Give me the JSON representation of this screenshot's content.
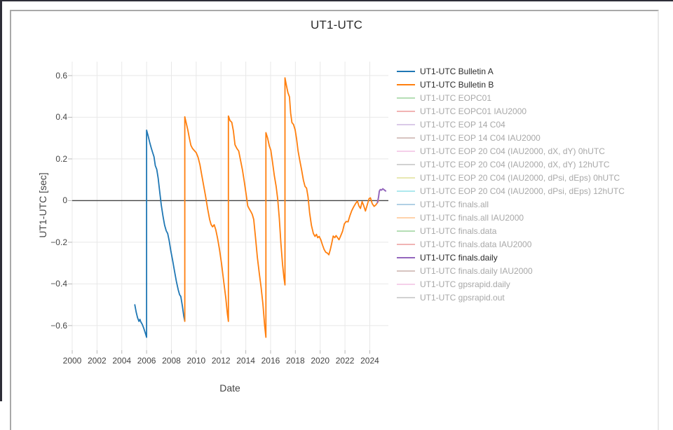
{
  "frame": {
    "card_border_color": "#a9a9a9",
    "window_edge_color": "#2e2e38",
    "background": "#ffffff"
  },
  "colors": {
    "grid": "#e8e8e8",
    "zeroline": "#444444",
    "tick_mark": "#b9b9b9",
    "tick_text": "#444444",
    "title_text": "#2b2b2b",
    "legend_active_text": "#2a2a2a",
    "legend_muted_text": "#a8a8a8"
  },
  "chart_data": {
    "type": "line",
    "title": "UT1-UTC",
    "xlabel": "Date",
    "ylabel": "UT1-UTC [sec]",
    "xlim": [
      2000,
      2025.5
    ],
    "ylim": [
      -0.718,
      0.667
    ],
    "grid": true,
    "zeroline": true,
    "legend_position": "right",
    "x_ticks": [
      {
        "v": 2000,
        "label": "2000"
      },
      {
        "v": 2002,
        "label": "2002"
      },
      {
        "v": 2004,
        "label": "2004"
      },
      {
        "v": 2006,
        "label": "2006"
      },
      {
        "v": 2008,
        "label": "2008"
      },
      {
        "v": 2010,
        "label": "2010"
      },
      {
        "v": 2012,
        "label": "2012"
      },
      {
        "v": 2014,
        "label": "2014"
      },
      {
        "v": 2016,
        "label": "2016"
      },
      {
        "v": 2018,
        "label": "2018"
      },
      {
        "v": 2020,
        "label": "2020"
      },
      {
        "v": 2022,
        "label": "2022"
      },
      {
        "v": 2024,
        "label": "2024"
      }
    ],
    "y_ticks": [
      {
        "v": 0.6,
        "label": "0.6"
      },
      {
        "v": 0.4,
        "label": "0.4"
      },
      {
        "v": 0.2,
        "label": "0.2"
      },
      {
        "v": 0,
        "label": "0"
      },
      {
        "v": -0.2,
        "label": "−0.2"
      },
      {
        "v": -0.4,
        "label": "−0.4"
      },
      {
        "v": -0.6,
        "label": "−0.6"
      }
    ],
    "series": [
      {
        "name": "UT1-UTC Bulletin A",
        "color": "#1f77b4",
        "width": 1.8,
        "points": [
          [
            2005.05,
            -0.5
          ],
          [
            2005.16,
            -0.536
          ],
          [
            2005.27,
            -0.562
          ],
          [
            2005.38,
            -0.58
          ],
          [
            2005.46,
            -0.57
          ],
          [
            2005.53,
            -0.582
          ],
          [
            2005.65,
            -0.594
          ],
          [
            2005.78,
            -0.614
          ],
          [
            2005.9,
            -0.636
          ],
          [
            2006.0,
            -0.656
          ],
          [
            2006.0,
            0.338
          ],
          [
            2006.12,
            0.312
          ],
          [
            2006.25,
            0.28
          ],
          [
            2006.38,
            0.252
          ],
          [
            2006.5,
            0.228
          ],
          [
            2006.6,
            0.21
          ],
          [
            2006.7,
            0.168
          ],
          [
            2006.82,
            0.15
          ],
          [
            2006.93,
            0.108
          ],
          [
            2007.06,
            0.04
          ],
          [
            2007.18,
            -0.02
          ],
          [
            2007.32,
            -0.075
          ],
          [
            2007.45,
            -0.118
          ],
          [
            2007.58,
            -0.145
          ],
          [
            2007.7,
            -0.158
          ],
          [
            2007.82,
            -0.192
          ],
          [
            2007.95,
            -0.24
          ],
          [
            2008.1,
            -0.288
          ],
          [
            2008.25,
            -0.338
          ],
          [
            2008.4,
            -0.388
          ],
          [
            2008.55,
            -0.428
          ],
          [
            2008.66,
            -0.452
          ],
          [
            2008.76,
            -0.46
          ],
          [
            2008.88,
            -0.505
          ],
          [
            2009.0,
            -0.556
          ],
          [
            2009.08,
            -0.578
          ]
        ]
      },
      {
        "name": "UT1-UTC Bulletin B",
        "color": "#ff7f0e",
        "width": 1.8,
        "points": [
          [
            2009.08,
            -0.58
          ],
          [
            2009.08,
            0.402
          ],
          [
            2009.2,
            0.372
          ],
          [
            2009.33,
            0.338
          ],
          [
            2009.45,
            0.3
          ],
          [
            2009.57,
            0.265
          ],
          [
            2009.7,
            0.25
          ],
          [
            2009.85,
            0.24
          ],
          [
            2010.0,
            0.23
          ],
          [
            2010.15,
            0.208
          ],
          [
            2010.3,
            0.172
          ],
          [
            2010.45,
            0.122
          ],
          [
            2010.6,
            0.072
          ],
          [
            2010.76,
            0.02
          ],
          [
            2010.92,
            -0.038
          ],
          [
            2011.08,
            -0.09
          ],
          [
            2011.2,
            -0.115
          ],
          [
            2011.32,
            -0.126
          ],
          [
            2011.45,
            -0.116
          ],
          [
            2011.58,
            -0.14
          ],
          [
            2011.72,
            -0.18
          ],
          [
            2011.88,
            -0.235
          ],
          [
            2012.05,
            -0.305
          ],
          [
            2012.22,
            -0.388
          ],
          [
            2012.38,
            -0.465
          ],
          [
            2012.52,
            -0.545
          ],
          [
            2012.6,
            -0.58
          ],
          [
            2012.6,
            0.406
          ],
          [
            2012.73,
            0.384
          ],
          [
            2012.87,
            0.376
          ],
          [
            2013.0,
            0.335
          ],
          [
            2013.13,
            0.268
          ],
          [
            2013.28,
            0.25
          ],
          [
            2013.43,
            0.238
          ],
          [
            2013.58,
            0.192
          ],
          [
            2013.73,
            0.148
          ],
          [
            2013.88,
            0.09
          ],
          [
            2014.03,
            0.03
          ],
          [
            2014.16,
            -0.026
          ],
          [
            2014.28,
            -0.04
          ],
          [
            2014.4,
            -0.052
          ],
          [
            2014.52,
            -0.066
          ],
          [
            2014.64,
            -0.09
          ],
          [
            2014.78,
            -0.175
          ],
          [
            2014.93,
            -0.272
          ],
          [
            2015.08,
            -0.345
          ],
          [
            2015.23,
            -0.415
          ],
          [
            2015.38,
            -0.495
          ],
          [
            2015.52,
            -0.6
          ],
          [
            2015.62,
            -0.656
          ],
          [
            2015.62,
            0.326
          ],
          [
            2015.75,
            0.302
          ],
          [
            2015.9,
            0.262
          ],
          [
            2016.02,
            0.242
          ],
          [
            2016.15,
            0.188
          ],
          [
            2016.3,
            0.12
          ],
          [
            2016.45,
            0.068
          ],
          [
            2016.58,
            0.005
          ],
          [
            2016.7,
            -0.085
          ],
          [
            2016.83,
            -0.205
          ],
          [
            2016.96,
            -0.305
          ],
          [
            2017.08,
            -0.372
          ],
          [
            2017.16,
            -0.405
          ],
          [
            2017.16,
            0.589
          ],
          [
            2017.28,
            0.552
          ],
          [
            2017.4,
            0.518
          ],
          [
            2017.52,
            0.498
          ],
          [
            2017.62,
            0.42
          ],
          [
            2017.72,
            0.375
          ],
          [
            2017.85,
            0.365
          ],
          [
            2017.98,
            0.34
          ],
          [
            2018.1,
            0.295
          ],
          [
            2018.22,
            0.238
          ],
          [
            2018.35,
            0.195
          ],
          [
            2018.5,
            0.148
          ],
          [
            2018.65,
            0.098
          ],
          [
            2018.78,
            0.068
          ],
          [
            2018.9,
            0.06
          ],
          [
            2019.02,
            0.018
          ],
          [
            2019.15,
            -0.06
          ],
          [
            2019.3,
            -0.12
          ],
          [
            2019.45,
            -0.158
          ],
          [
            2019.58,
            -0.172
          ],
          [
            2019.7,
            -0.162
          ],
          [
            2019.8,
            -0.178
          ],
          [
            2019.92,
            -0.172
          ],
          [
            2020.05,
            -0.188
          ],
          [
            2020.18,
            -0.212
          ],
          [
            2020.32,
            -0.235
          ],
          [
            2020.45,
            -0.248
          ],
          [
            2020.58,
            -0.252
          ],
          [
            2020.7,
            -0.26
          ],
          [
            2020.82,
            -0.235
          ],
          [
            2020.95,
            -0.2
          ],
          [
            2021.05,
            -0.17
          ],
          [
            2021.18,
            -0.178
          ],
          [
            2021.28,
            -0.168
          ],
          [
            2021.4,
            -0.178
          ],
          [
            2021.52,
            -0.188
          ],
          [
            2021.65,
            -0.17
          ],
          [
            2021.8,
            -0.148
          ],
          [
            2021.95,
            -0.112
          ],
          [
            2022.1,
            -0.1
          ],
          [
            2022.25,
            -0.102
          ],
          [
            2022.4,
            -0.072
          ],
          [
            2022.55,
            -0.048
          ],
          [
            2022.7,
            -0.03
          ],
          [
            2022.85,
            -0.015
          ],
          [
            2023.0,
            -0.002
          ],
          [
            2023.12,
            -0.025
          ],
          [
            2023.25,
            -0.038
          ],
          [
            2023.38,
            -0.005
          ],
          [
            2023.5,
            -0.022
          ],
          [
            2023.65,
            -0.05
          ],
          [
            2023.8,
            -0.02
          ],
          [
            2023.95,
            0.01
          ],
          [
            2024.05,
            0.013
          ],
          [
            2024.2,
            -0.015
          ],
          [
            2024.35,
            -0.028
          ],
          [
            2024.5,
            -0.02
          ],
          [
            2024.62,
            -0.01
          ],
          [
            2024.7,
            0.0
          ]
        ]
      },
      {
        "name": "UT1-UTC finals.daily",
        "color": "#9467bd",
        "width": 2,
        "points": [
          [
            2024.62,
            -0.01
          ],
          [
            2024.7,
            0.015
          ],
          [
            2024.77,
            0.045
          ],
          [
            2024.85,
            0.053
          ],
          [
            2024.95,
            0.05
          ],
          [
            2025.05,
            0.057
          ],
          [
            2025.15,
            0.052
          ],
          [
            2025.28,
            0.046
          ]
        ]
      }
    ],
    "legend": [
      {
        "label": "UT1-UTC Bulletin A",
        "color": "#1f77b4",
        "active": true
      },
      {
        "label": "UT1-UTC Bulletin B",
        "color": "#ff7f0e",
        "active": true
      },
      {
        "label": "UT1-UTC EOPC01",
        "color": "#2ca02c",
        "active": false
      },
      {
        "label": "UT1-UTC EOPC01 IAU2000",
        "color": "#d62728",
        "active": false
      },
      {
        "label": "UT1-UTC EOP 14 C04",
        "color": "#9467bd",
        "active": false
      },
      {
        "label": "UT1-UTC EOP 14 C04 IAU2000",
        "color": "#8c564b",
        "active": false
      },
      {
        "label": "UT1-UTC EOP 20 C04 (IAU2000, dX, dY) 0hUTC",
        "color": "#e377c2",
        "active": false
      },
      {
        "label": "UT1-UTC EOP 20 C04 (IAU2000, dX, dY) 12hUTC",
        "color": "#7f7f7f",
        "active": false
      },
      {
        "label": "UT1-UTC EOP 20 C04 (IAU2000, dPsi, dEps) 0hUTC",
        "color": "#bcbd22",
        "active": false
      },
      {
        "label": "UT1-UTC EOP 20 C04 (IAU2000, dPsi, dEps) 12hUTC",
        "color": "#17becf",
        "active": false
      },
      {
        "label": "UT1-UTC finals.all",
        "color": "#1f77b4",
        "active": false
      },
      {
        "label": "UT1-UTC finals.all IAU2000",
        "color": "#ff7f0e",
        "active": false
      },
      {
        "label": "UT1-UTC finals.data",
        "color": "#2ca02c",
        "active": false
      },
      {
        "label": "UT1-UTC finals.data IAU2000",
        "color": "#d62728",
        "active": false
      },
      {
        "label": "UT1-UTC finals.daily",
        "color": "#9467bd",
        "active": true
      },
      {
        "label": "UT1-UTC finals.daily IAU2000",
        "color": "#8c564b",
        "active": false
      },
      {
        "label": "UT1-UTC gpsrapid.daily",
        "color": "#e377c2",
        "active": false
      },
      {
        "label": "UT1-UTC gpsrapid.out",
        "color": "#7f7f7f",
        "active": false
      }
    ]
  }
}
